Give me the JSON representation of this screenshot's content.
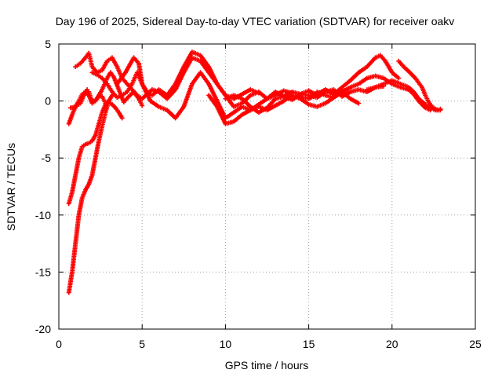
{
  "chart_data": {
    "type": "scatter",
    "title": "Day 196 of 2025, Sidereal Day-to-day VTEC variation (SDTVAR) for receiver oakv",
    "xlabel": "GPS time / hours",
    "ylabel": "SDTVAR / TECUs",
    "xlim": [
      0,
      25
    ],
    "ylim": [
      -20,
      5
    ],
    "xticks": [
      0,
      5,
      10,
      15,
      20,
      25
    ],
    "yticks": [
      5,
      0,
      -5,
      -10,
      -15,
      -20
    ],
    "grid": true,
    "marker": "+",
    "colors": {
      "series": "#ff0000",
      "grid": "#a0a0a0",
      "axes": "#000000"
    },
    "series": [
      {
        "name": "track-1",
        "x": [
          0.6,
          0.8,
          1.0,
          1.2,
          1.4,
          1.6,
          1.8,
          2.0,
          2.2,
          2.4,
          2.6,
          2.8,
          3.0,
          3.2
        ],
        "y": [
          -16.8,
          -15.0,
          -12.5,
          -10.0,
          -8.5,
          -7.8,
          -7.3,
          -6.5,
          -5.0,
          -3.5,
          -2.2,
          -1.0,
          0.0,
          0.5
        ]
      },
      {
        "name": "track-2",
        "x": [
          0.6,
          0.8,
          1.0,
          1.2,
          1.4,
          1.6,
          1.8,
          2.0,
          2.2,
          2.4,
          2.6,
          2.8,
          3.0
        ],
        "y": [
          -9.0,
          -8.0,
          -6.5,
          -5.0,
          -4.0,
          -3.8,
          -3.7,
          -3.5,
          -3.0,
          -2.0,
          -1.0,
          -0.3,
          0.0
        ]
      },
      {
        "name": "track-3",
        "x": [
          0.6,
          0.8,
          1.0,
          1.2,
          1.4,
          1.6,
          1.8,
          2.0,
          2.2,
          2.4,
          2.6,
          2.8,
          3.0,
          3.2,
          3.4,
          3.6,
          3.8
        ],
        "y": [
          -2.0,
          -1.2,
          -0.5,
          0.0,
          0.6,
          0.8,
          0.5,
          -0.2,
          0.0,
          0.5,
          0.4,
          -0.2,
          -0.1,
          -0.3,
          -0.6,
          -1.0,
          -1.5
        ]
      },
      {
        "name": "track-4",
        "x": [
          0.7,
          1.0,
          1.3,
          1.5,
          1.7,
          1.8,
          2.0,
          2.3,
          2.6,
          2.9,
          3.1,
          3.3,
          3.6,
          3.9,
          4.2,
          4.5,
          4.8,
          5.0
        ],
        "y": [
          -0.6,
          -0.5,
          -0.2,
          0.5,
          1.0,
          0.8,
          -0.1,
          0.2,
          1.0,
          2.0,
          2.5,
          2.1,
          1.0,
          -0.1,
          0.4,
          0.8,
          0.2,
          -0.4
        ]
      },
      {
        "name": "track-5",
        "x": [
          1.0,
          1.3,
          1.6,
          1.8,
          2.0,
          2.3,
          2.6,
          2.9,
          3.2,
          3.5,
          3.8,
          4.1,
          4.4,
          4.7,
          5.0,
          5.3,
          5.6,
          6.0,
          6.5,
          7.0,
          7.5,
          8.0,
          8.5,
          9.0,
          9.5,
          10.0,
          10.5,
          11.0,
          11.5,
          12.0
        ],
        "y": [
          3.0,
          3.3,
          3.8,
          4.2,
          3.0,
          2.5,
          2.7,
          3.5,
          3.8,
          3.0,
          2.0,
          1.5,
          1.0,
          0.5,
          0.2,
          0.6,
          1.0,
          0.8,
          0.2,
          1.0,
          2.5,
          3.8,
          3.5,
          2.5,
          1.5,
          0.5,
          0.2,
          0.6,
          1.0,
          0.7
        ]
      },
      {
        "name": "track-6",
        "x": [
          2.0,
          2.3,
          2.6,
          2.9,
          3.2,
          3.5,
          3.8,
          4.1,
          4.4,
          4.7,
          5.0,
          5.3,
          5.6,
          6.0,
          6.5,
          7.0,
          7.5,
          8.0,
          8.5,
          9.0,
          9.5,
          10.0,
          10.5,
          11.0,
          11.5,
          12.0,
          12.5,
          13.0,
          13.5,
          14.0
        ],
        "y": [
          2.5,
          2.3,
          2.0,
          1.5,
          0.8,
          0.3,
          0.5,
          0.8,
          1.5,
          2.5,
          1.5,
          0.8,
          0.5,
          1.0,
          0.5,
          1.5,
          3.0,
          4.3,
          4.0,
          3.0,
          1.5,
          0.5,
          -0.5,
          -0.2,
          0.5,
          0.8,
          0.2,
          0.5,
          0.9,
          0.7
        ]
      },
      {
        "name": "track-7",
        "x": [
          3.5,
          4.0,
          4.5,
          4.8,
          5.0,
          5.5,
          6.0,
          6.5,
          7.0,
          7.5,
          8.0,
          8.5,
          9.0,
          9.5,
          10.0,
          10.5,
          11.0,
          11.5,
          12.0,
          12.5,
          13.0,
          13.5,
          14.0,
          14.5,
          15.0,
          15.5
        ],
        "y": [
          1.5,
          2.5,
          3.8,
          3.3,
          1.5,
          0.0,
          -0.5,
          -0.8,
          -1.5,
          -0.5,
          1.5,
          2.5,
          1.5,
          0.0,
          -1.5,
          -1.0,
          -0.5,
          -0.8,
          -0.3,
          0.2,
          0.8,
          0.4,
          0.1,
          0.6,
          0.9,
          0.5
        ]
      },
      {
        "name": "track-8",
        "x": [
          9.0,
          9.5,
          10.0,
          10.5,
          11.0,
          11.5,
          12.0,
          12.5,
          13.0,
          13.5,
          14.0,
          14.5,
          15.0,
          15.5,
          16.0,
          16.5,
          17.0,
          17.5,
          18.0
        ],
        "y": [
          0.5,
          -0.5,
          -2.0,
          -1.8,
          -1.2,
          -0.8,
          -0.5,
          -0.8,
          -0.4,
          0.0,
          0.5,
          0.2,
          -0.3,
          -0.5,
          -0.2,
          0.3,
          0.8,
          0.2,
          -0.2
        ]
      },
      {
        "name": "track-9",
        "x": [
          10.0,
          10.5,
          11.0,
          11.5,
          12.0,
          12.5,
          13.0,
          13.5,
          14.0,
          14.5,
          15.0,
          15.5,
          16.0,
          16.5,
          17.0,
          17.5,
          18.0,
          18.5,
          19.0,
          19.5
        ],
        "y": [
          0.2,
          0.5,
          0.2,
          -0.5,
          -1.0,
          -0.6,
          0.2,
          0.4,
          0.8,
          0.6,
          0.5,
          0.3,
          0.8,
          1.0,
          0.4,
          0.8,
          1.0,
          0.8,
          1.2,
          1.3
        ]
      },
      {
        "name": "track-10",
        "x": [
          14.5,
          15.0,
          15.5,
          16.0,
          16.5,
          17.0,
          17.5,
          18.0,
          18.5,
          19.0,
          19.3,
          19.6,
          20.0,
          20.4
        ],
        "y": [
          0.4,
          0.2,
          0.6,
          1.0,
          0.6,
          1.2,
          1.8,
          2.5,
          3.0,
          3.8,
          4.0,
          3.5,
          2.5,
          2.0
        ]
      },
      {
        "name": "track-11",
        "x": [
          15.5,
          16.0,
          16.5,
          17.0,
          17.5,
          18.0,
          18.5,
          19.0,
          19.5,
          20.0,
          20.5,
          21.0,
          21.3,
          21.6,
          22.0,
          22.3
        ],
        "y": [
          0.8,
          0.5,
          0.3,
          0.8,
          1.2,
          1.5,
          2.0,
          2.2,
          2.0,
          1.5,
          1.2,
          1.0,
          0.6,
          0.0,
          -0.6,
          -0.8
        ]
      },
      {
        "name": "track-12",
        "x": [
          18.5,
          19.0,
          19.5,
          20.0,
          20.5,
          21.0,
          21.3,
          21.6,
          22.0,
          22.3,
          22.6,
          22.9
        ],
        "y": [
          1.0,
          1.2,
          1.5,
          1.8,
          1.5,
          1.2,
          0.8,
          0.2,
          -0.3,
          -0.6,
          -0.8,
          -0.8
        ]
      },
      {
        "name": "track-13",
        "x": [
          20.4,
          20.7,
          21.0,
          21.2,
          21.4,
          21.6,
          21.8,
          22.0,
          22.2,
          22.4,
          22.6,
          22.8,
          22.9
        ],
        "y": [
          3.5,
          3.0,
          2.6,
          2.3,
          2.0,
          1.6,
          1.2,
          0.5,
          -0.1,
          -0.5,
          -0.7,
          -0.8,
          -0.7
        ]
      }
    ]
  }
}
